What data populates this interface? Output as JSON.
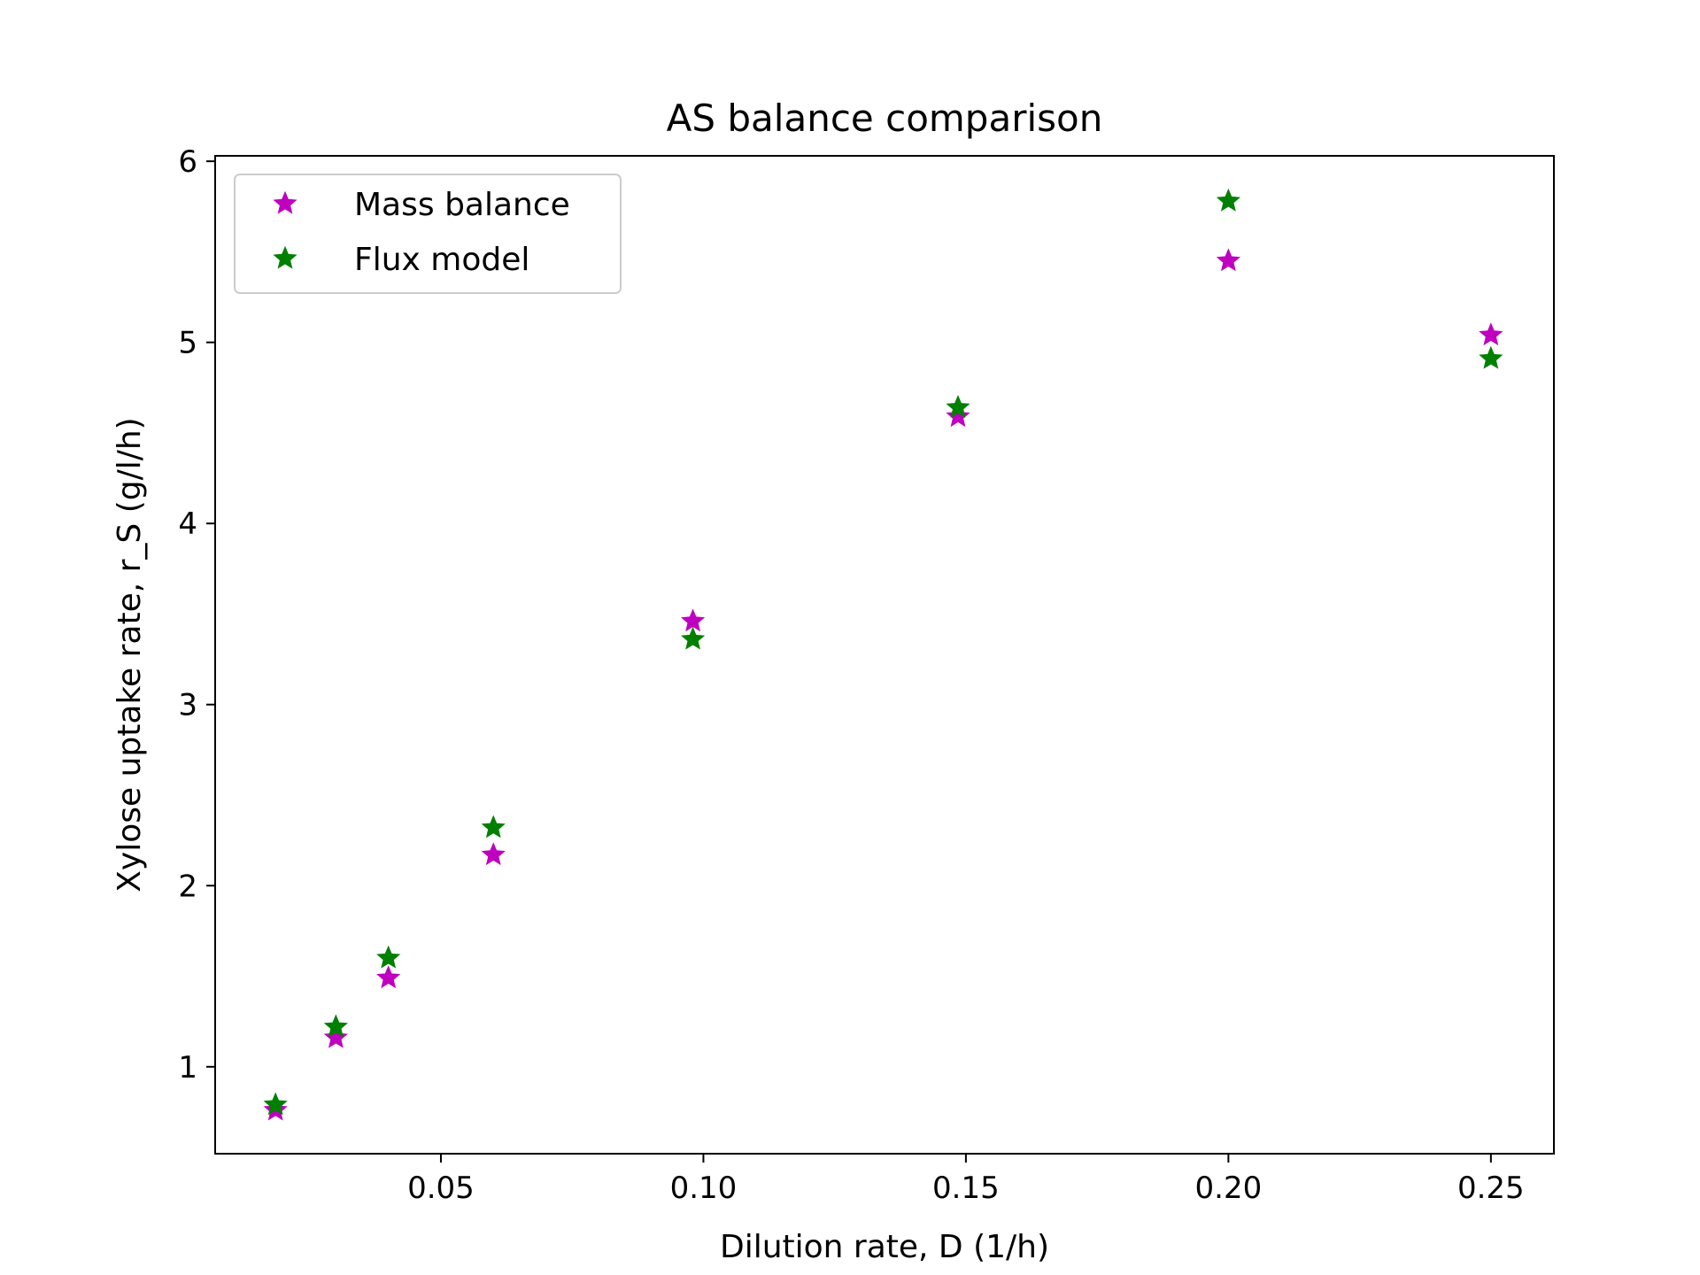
{
  "chart_data": {
    "type": "scatter",
    "title": "AS balance comparison",
    "xlabel": "Dilution rate, D (1/h)",
    "ylabel": "Xylose uptake rate, r_S (g/l/h)",
    "xlim": [
      0.007,
      0.262
    ],
    "ylim": [
      0.52,
      6.03
    ],
    "x_ticks": [
      0.05,
      0.1,
      0.15,
      0.2,
      0.25
    ],
    "x_tick_labels": [
      "0.05",
      "0.10",
      "0.15",
      "0.20",
      "0.25"
    ],
    "y_ticks": [
      1,
      2,
      3,
      4,
      5,
      6
    ],
    "y_tick_labels": [
      "1",
      "2",
      "3",
      "4",
      "5",
      "6"
    ],
    "grid": false,
    "legend_position": "top-left",
    "marker": "star",
    "x": [
      0.0185,
      0.03,
      0.04,
      0.06,
      0.098,
      0.1485,
      0.2,
      0.25
    ],
    "series": [
      {
        "name": "Mass balance",
        "color": "#bf00bf",
        "values": [
          0.76,
          1.16,
          1.49,
          2.17,
          3.46,
          4.59,
          5.45,
          5.04
        ]
      },
      {
        "name": "Flux model",
        "color": "#008000",
        "values": [
          0.79,
          1.22,
          1.6,
          2.32,
          3.36,
          4.64,
          5.78,
          4.91
        ]
      }
    ]
  }
}
